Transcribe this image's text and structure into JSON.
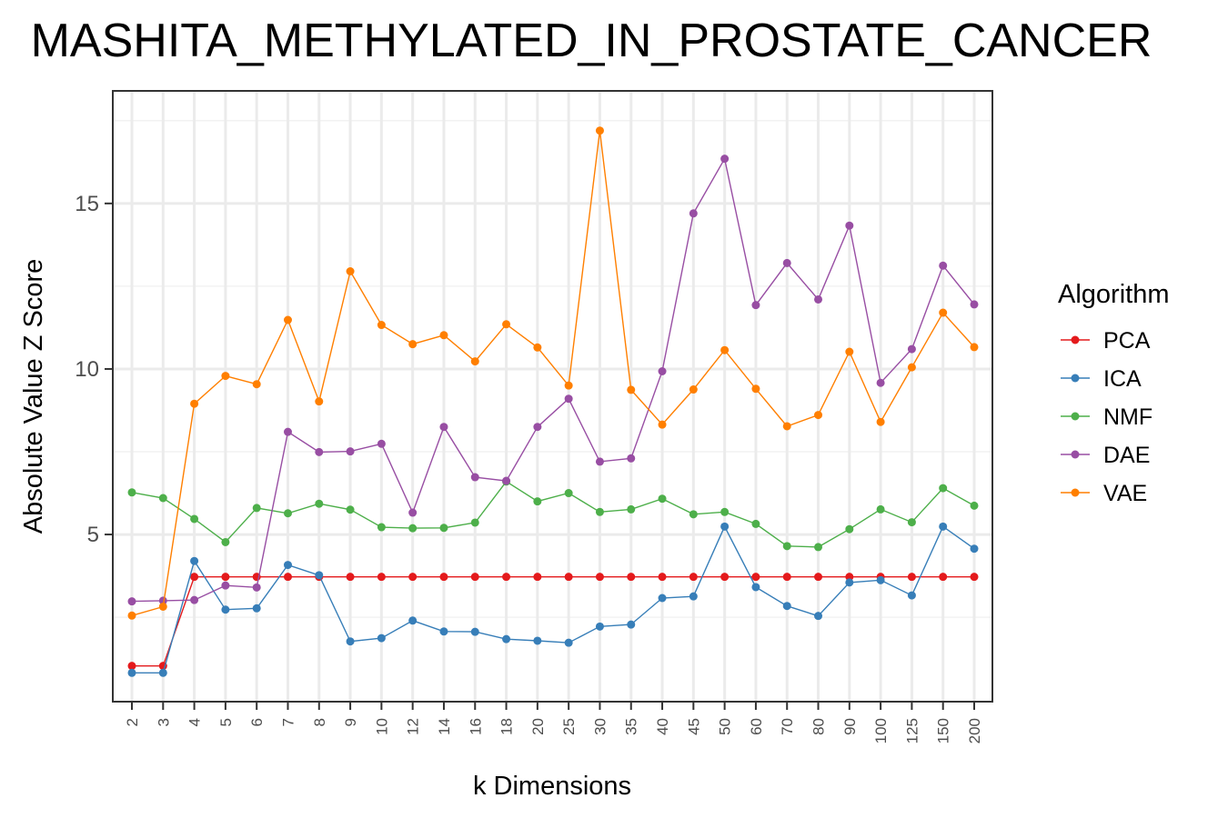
{
  "chart_data": {
    "type": "line",
    "title": "MASHITA_METHYLATED_IN_PROSTATE_CANCER",
    "xlabel": "k Dimensions",
    "ylabel": "Absolute Value Z Score",
    "categories": [
      "2",
      "3",
      "4",
      "5",
      "6",
      "7",
      "8",
      "9",
      "10",
      "12",
      "14",
      "16",
      "18",
      "20",
      "25",
      "30",
      "35",
      "40",
      "45",
      "50",
      "60",
      "70",
      "80",
      "90",
      "100",
      "125",
      "150",
      "200"
    ],
    "yticks": [
      5,
      10,
      15
    ],
    "ylim": [
      0,
      18
    ],
    "grid": true,
    "legend": {
      "title": "Algorithm",
      "position": "right"
    },
    "series": [
      {
        "name": "PCA",
        "color": "#E41A1C",
        "values": [
          1.03,
          1.03,
          3.72,
          3.72,
          3.72,
          3.72,
          3.72,
          3.72,
          3.72,
          3.72,
          3.72,
          3.72,
          3.72,
          3.72,
          3.72,
          3.72,
          3.72,
          3.72,
          3.72,
          3.72,
          3.72,
          3.72,
          3.72,
          3.72,
          3.72,
          3.72,
          3.72,
          3.72
        ]
      },
      {
        "name": "ICA",
        "color": "#377EB8",
        "values": [
          0.82,
          0.82,
          4.2,
          2.73,
          2.77,
          4.08,
          3.77,
          1.77,
          1.87,
          2.4,
          2.07,
          2.06,
          1.84,
          1.79,
          1.73,
          2.22,
          2.28,
          3.08,
          3.13,
          5.24,
          3.41,
          2.84,
          2.54,
          3.55,
          3.62,
          3.16,
          5.24,
          4.57
        ]
      },
      {
        "name": "NMF",
        "color": "#4DAF4A",
        "values": [
          6.27,
          6.1,
          5.47,
          4.77,
          5.8,
          5.64,
          5.93,
          5.75,
          5.22,
          5.19,
          5.2,
          5.36,
          6.6,
          6.0,
          6.25,
          5.68,
          5.76,
          6.08,
          5.61,
          5.68,
          5.32,
          4.65,
          4.62,
          5.16,
          5.76,
          5.37,
          6.4,
          5.87
        ]
      },
      {
        "name": "DAE",
        "color": "#984EA3",
        "values": [
          2.98,
          3.0,
          3.02,
          3.46,
          3.4,
          8.1,
          7.49,
          7.51,
          7.74,
          5.66,
          8.25,
          6.73,
          6.62,
          8.25,
          9.1,
          7.2,
          7.3,
          9.93,
          14.7,
          16.35,
          11.93,
          13.2,
          12.1,
          14.33,
          9.58,
          10.6,
          13.12,
          11.95
        ]
      },
      {
        "name": "VAE",
        "color": "#FF7F00",
        "values": [
          2.55,
          2.82,
          8.95,
          9.79,
          9.54,
          11.48,
          9.02,
          12.95,
          11.33,
          10.75,
          11.02,
          10.23,
          11.35,
          10.65,
          9.5,
          17.2,
          9.37,
          8.32,
          9.38,
          10.57,
          9.4,
          8.27,
          8.61,
          10.52,
          8.4,
          10.05,
          11.7,
          10.66
        ]
      }
    ]
  }
}
